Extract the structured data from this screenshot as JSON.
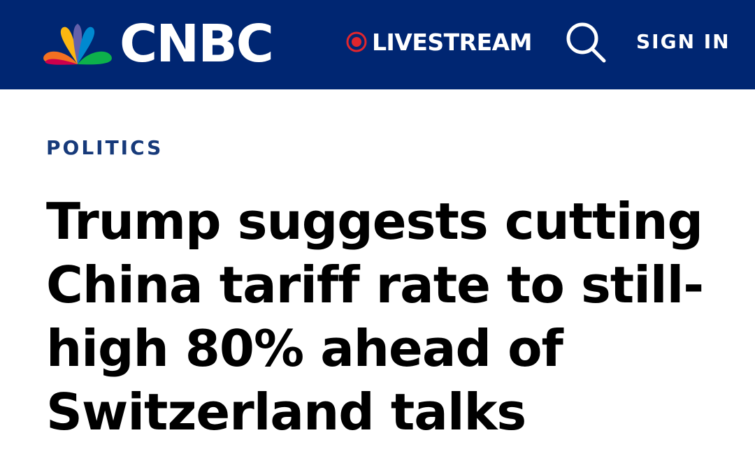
{
  "header": {
    "brand": "CNBC",
    "logo_icon": "peacock-logo-icon",
    "livestream_label": "LIVESTREAM",
    "live_icon": "live-record-icon",
    "search_icon": "search-icon",
    "signin_label": "SIGN IN",
    "colors": {
      "bar": "#002672",
      "live_dot": "#e1262d"
    }
  },
  "article": {
    "section": "POLITICS",
    "headline": "Trump suggests cutting China tariff rate to still-high 80% ahead of Switzerland talks"
  }
}
